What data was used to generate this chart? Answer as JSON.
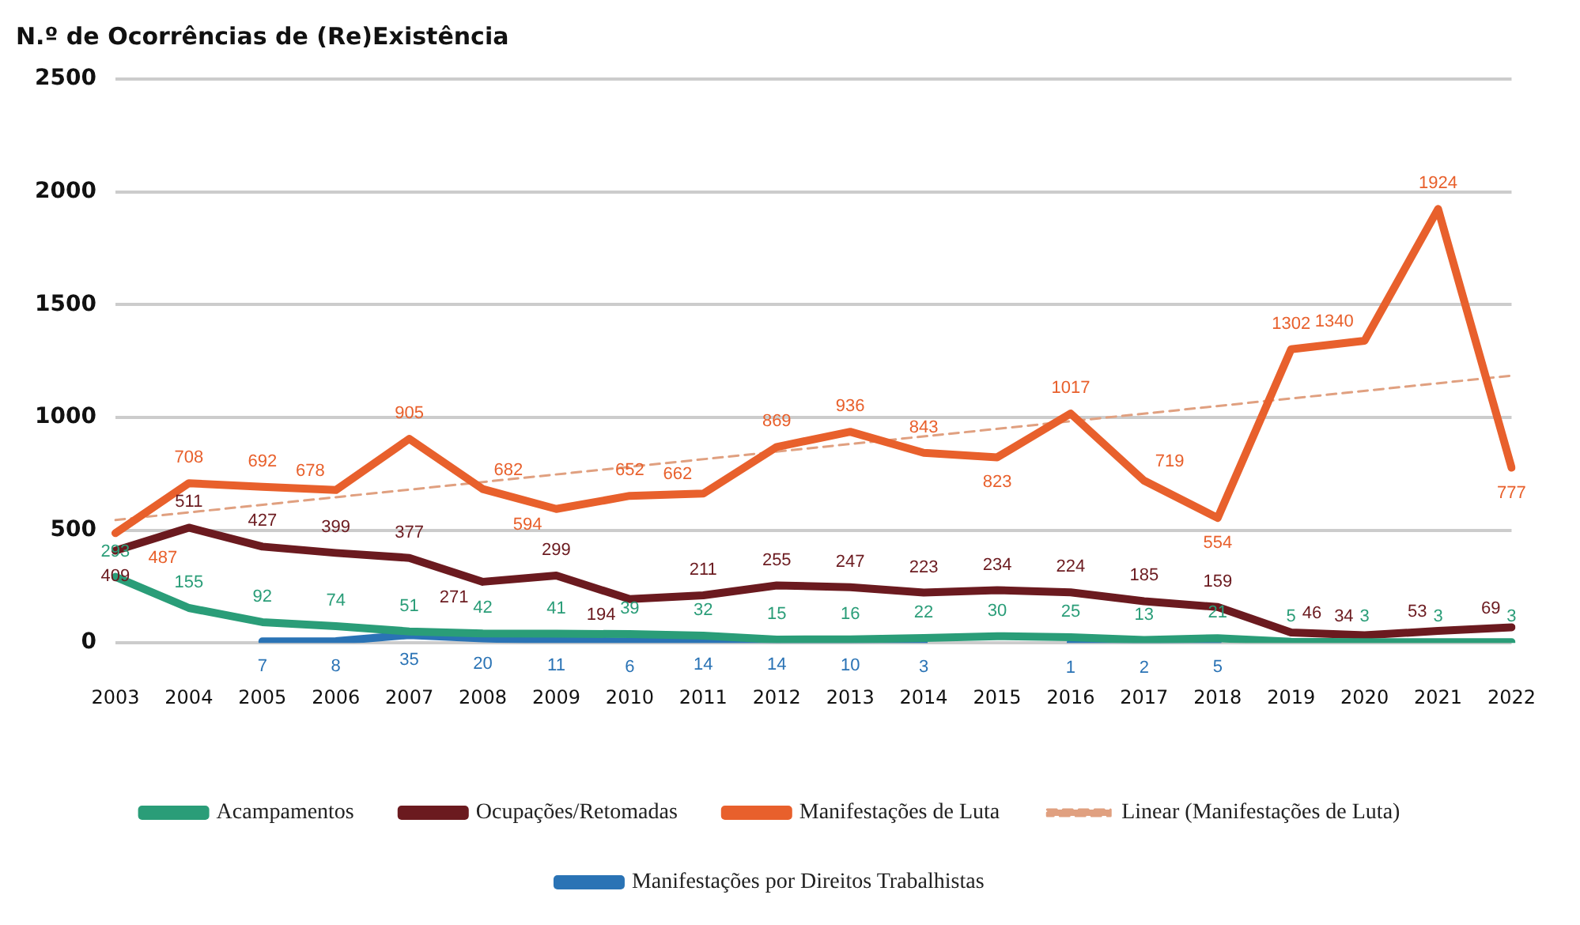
{
  "chart_data": {
    "type": "line",
    "title": "N.º de Ocorrências de (Re)Existência",
    "categories": [
      "2003",
      "2004",
      "2005",
      "2006",
      "2007",
      "2008",
      "2009",
      "2010",
      "2011",
      "2012",
      "2013",
      "2014",
      "2015",
      "2016",
      "2017",
      "2018",
      "2019",
      "2020",
      "2021",
      "2022"
    ],
    "series": [
      {
        "name": "Acampamentos",
        "color": "#2a9d78",
        "values": [
          293,
          155,
          92,
          74,
          51,
          42,
          41,
          39,
          32,
          15,
          16,
          22,
          30,
          25,
          13,
          21,
          5,
          3,
          3,
          3
        ]
      },
      {
        "name": "Ocupações/Retomadas",
        "color": "#6b1a1f",
        "values": [
          409,
          511,
          427,
          399,
          377,
          271,
          299,
          194,
          211,
          255,
          247,
          223,
          234,
          224,
          185,
          159,
          46,
          34,
          53,
          69
        ]
      },
      {
        "name": "Manifestações de Luta",
        "color": "#e8602c",
        "values": [
          487,
          708,
          692,
          678,
          905,
          682,
          594,
          652,
          662,
          869,
          936,
          843,
          823,
          1017,
          719,
          554,
          1302,
          1340,
          1924,
          777
        ]
      },
      {
        "name": "Linear (Manifestações de Luta)",
        "color": "#e0a080",
        "line_style": "dashed",
        "data_labels": false,
        "values": [
          545,
          null,
          null,
          null,
          null,
          null,
          null,
          null,
          null,
          null,
          null,
          null,
          null,
          null,
          null,
          null,
          null,
          null,
          null,
          1185
        ]
      },
      {
        "name": "Manifestações por Direitos Trabalhistas",
        "color": "#2a73b5",
        "values": [
          null,
          null,
          7,
          8,
          35,
          20,
          11,
          6,
          14,
          14,
          10,
          3,
          null,
          1,
          2,
          5,
          null,
          null,
          null,
          null
        ]
      }
    ],
    "ylim": [
      0,
      2500
    ],
    "yticks": [
      0,
      500,
      1000,
      1500,
      2000,
      2500
    ],
    "grid": "y",
    "legend": "bottom",
    "data_labels": true,
    "line_style": "solid",
    "marker": "none"
  }
}
